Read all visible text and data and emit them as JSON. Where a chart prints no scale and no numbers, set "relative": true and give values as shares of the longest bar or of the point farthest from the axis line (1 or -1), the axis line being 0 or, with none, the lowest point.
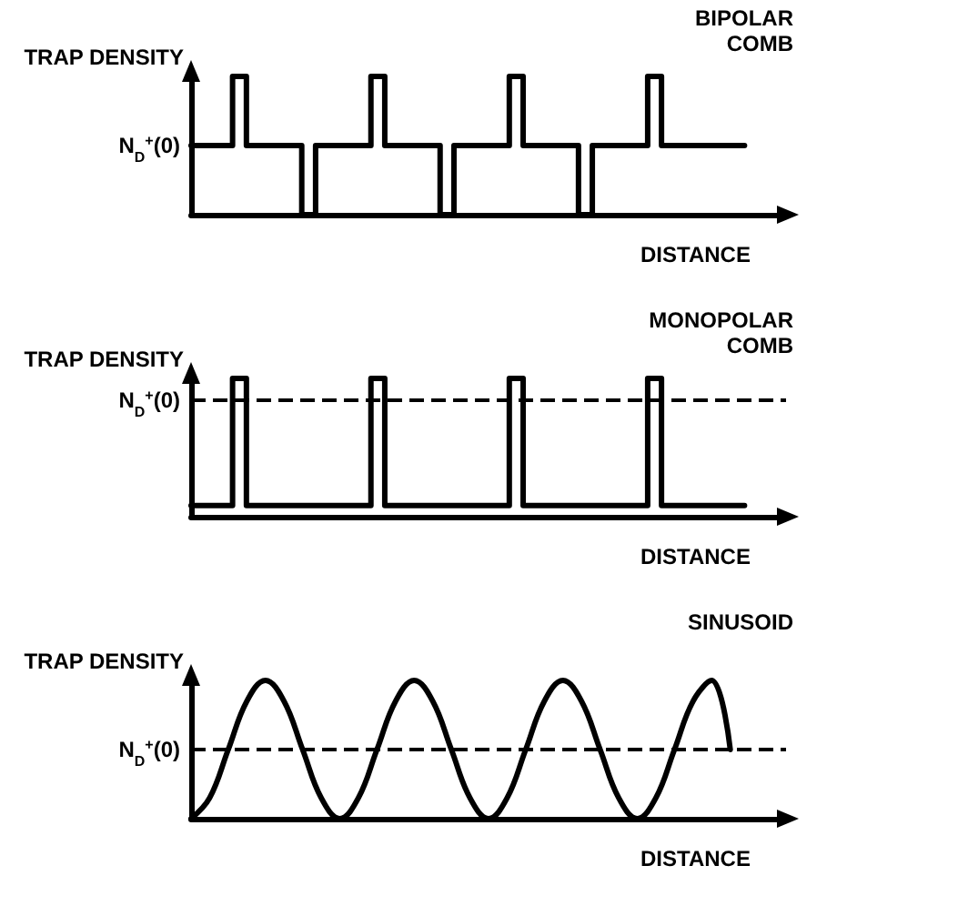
{
  "chart_data": [
    {
      "type": "step",
      "title": "BIPOLAR COMB",
      "ylabel": "TRAP DENSITY",
      "xlabel": "DISTANCE",
      "relative": true,
      "grid": false,
      "marker": "none",
      "line_style": "solid",
      "categories": [
        null,
        null,
        null,
        null,
        null,
        null,
        null,
        null,
        null,
        null,
        null,
        null,
        null,
        null,
        null,
        null,
        null,
        null,
        null,
        null,
        null,
        null,
        null,
        null,
        null,
        null,
        null,
        null,
        null,
        null,
        null,
        null,
        null,
        null,
        null,
        null,
        null,
        null,
        null,
        null,
        null,
        null,
        null,
        null
      ],
      "series": [
        {
          "color": "#000000",
          "values": [
            0.5,
            0.5,
            0.5,
            0.5,
            1,
            0.5,
            0.5,
            0.5,
            0.5,
            0,
            0.5,
            0.5,
            0.5,
            0.5,
            1,
            0.5,
            0.5,
            0.5,
            0.5,
            0,
            0.5,
            0.5,
            0.5,
            0.5,
            1,
            0.5,
            0.5,
            0.5,
            0.5,
            0,
            0.5,
            0.5,
            0.5,
            0.5,
            1,
            0.5,
            0.5,
            0.5,
            0.5,
            0.5,
            0.5,
            null,
            null,
            null
          ]
        }
      ],
      "annotations": [
        "N$_{D}$$^{+}$(0)"
      ]
    },
    {
      "type": "step",
      "title": "MONOPOLAR COMB",
      "ylabel": "TRAP DENSITY",
      "xlabel": "DISTANCE",
      "relative": true,
      "grid": false,
      "marker": "none",
      "line_style": "solid",
      "categories": [
        null,
        null,
        null,
        null,
        null,
        null,
        null,
        null,
        null,
        null,
        null,
        null,
        null,
        null,
        null,
        null,
        null,
        null,
        null,
        null,
        null,
        null,
        null,
        null,
        null,
        null,
        null,
        null,
        null,
        null,
        null,
        null,
        null,
        null,
        null,
        null,
        null,
        null,
        null,
        null,
        null,
        null,
        null,
        null
      ],
      "series": [
        {
          "color": "#000000",
          "values": [
            0.08,
            0.08,
            0.08,
            0.08,
            1,
            0.08,
            0.08,
            0.08,
            0.08,
            0.08,
            0.08,
            0.08,
            0.08,
            0.08,
            1,
            0.08,
            0.08,
            0.08,
            0.08,
            0.08,
            0.08,
            0.08,
            0.08,
            0.08,
            1,
            0.08,
            0.08,
            0.08,
            0.08,
            0.08,
            0.08,
            0.08,
            0.08,
            0.08,
            1,
            0.08,
            0.08,
            0.08,
            0.08,
            0.08,
            0.08,
            null,
            null,
            null
          ]
        }
      ],
      "ref_lines": [
        {
          "axis": "y",
          "value": 0.84,
          "label": "N$_{D}$$^{+}$(0)",
          "line_style": "dashed",
          "color": "#000000"
        }
      ]
    },
    {
      "type": "line",
      "title": "SINUSOID",
      "ylabel": "TRAP DENSITY",
      "xlabel": "DISTANCE",
      "relative": true,
      "grid": false,
      "marker": "none",
      "line_style": "solid",
      "categories": [
        null,
        null,
        null,
        null,
        null,
        null,
        null,
        null,
        null,
        null,
        null,
        null,
        null,
        null,
        null,
        null,
        null,
        null,
        null,
        null,
        null,
        null,
        null,
        null,
        null,
        null,
        null,
        null,
        null,
        null,
        null,
        null,
        null
      ],
      "series": [
        {
          "color": "#000000",
          "values": [
            0,
            0.15,
            0.5,
            0.85,
            1,
            0.85,
            0.5,
            0.15,
            0,
            0.15,
            0.5,
            0.85,
            1,
            0.85,
            0.5,
            0.15,
            0,
            0.15,
            0.5,
            0.85,
            1,
            0.85,
            0.5,
            0.15,
            0,
            0.15,
            0.5,
            0.85,
            1,
            0.5,
            null,
            null,
            null
          ]
        }
      ],
      "ref_lines": [
        {
          "axis": "y",
          "value": 0.5,
          "label": "N$_{D}$$^{+}$(0)",
          "line_style": "dashed",
          "color": "#000000"
        }
      ]
    }
  ]
}
